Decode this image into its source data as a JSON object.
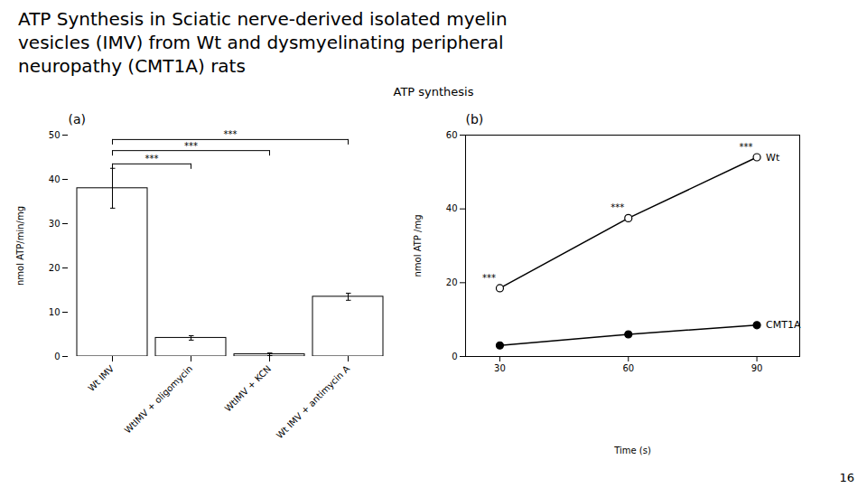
{
  "title": "ATP Synthesis in Sciatic nerve-derived isolated myelin\nvesicles (IMV) from Wt and dysmyelinating peripheral\nneuropathy (CMT1A) rats",
  "subtitle": "ATP synthesis",
  "annotations": [
    "16"
  ],
  "chart_data": [
    {
      "type": "bar",
      "annotations": [
        "(a)"
      ],
      "categories": [
        "Wt IMV",
        "WtIMV + oligomycin",
        "WtIMV + KCN",
        "Wt IMV + antimycin A"
      ],
      "values": [
        38.0,
        4.2,
        0.5,
        13.5
      ],
      "errors": [
        4.5,
        0.5,
        0.3,
        0.8
      ],
      "color": "#ffffff",
      "ylabel": "nmol ATP/min/mg",
      "ylim": [
        0,
        50
      ],
      "yticks": [
        0,
        10,
        20,
        30,
        40,
        50
      ],
      "significance_brackets": [
        {
          "from": "Wt IMV",
          "to": "WtIMV + oligomycin",
          "y": 43.5,
          "label": "***"
        },
        {
          "from": "Wt IMV",
          "to": "WtIMV + KCN",
          "y": 46.5,
          "label": "***"
        },
        {
          "from": "Wt IMV",
          "to": "Wt IMV + antimycin A",
          "y": 49.0,
          "label": "***"
        }
      ]
    },
    {
      "type": "line",
      "annotations": [
        "(b)"
      ],
      "xlabel": "Time (s)",
      "ylabel": "nmol ATP /mg",
      "xlim": [
        22,
        100
      ],
      "xticks": [
        30,
        60,
        90
      ],
      "ylim": [
        0,
        60
      ],
      "yticks": [
        0,
        20,
        40,
        60
      ],
      "x": [
        30,
        60,
        90
      ],
      "series": [
        {
          "name": "Wt",
          "marker": "open_circle",
          "values": [
            18.5,
            37.5,
            54.0
          ],
          "significance_labels": [
            "***",
            "***",
            "***"
          ]
        },
        {
          "name": "CMT1A",
          "marker": "filled_circle",
          "values": [
            3.0,
            6.0,
            8.5
          ]
        }
      ]
    }
  ]
}
